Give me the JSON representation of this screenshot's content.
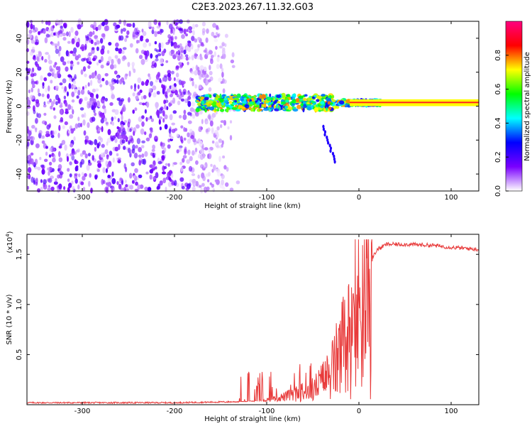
{
  "page_title": "C2E3.2023.267.11.32.G03",
  "chart_data": [
    {
      "type": "heatmap",
      "title": "C2E3.2023.267.11.32.G03",
      "xlabel": "Height of straight line (km)",
      "ylabel": "Frequency (Hz)",
      "xlim": [
        -360,
        130
      ],
      "ylim": [
        -50,
        50
      ],
      "xticks": [
        "-300",
        "-200",
        "-100",
        "0",
        "100"
      ],
      "yticks": [
        "-40",
        "-20",
        "0",
        "20",
        "40"
      ],
      "colorbar": {
        "label": "Normalized spectral amplitude",
        "range": [
          0,
          1
        ],
        "ticks": [
          "0.0",
          "0.2",
          "0.4",
          "0.6",
          "0.8"
        ],
        "colors": [
          "#ffffff",
          "#7a00ff",
          "#0000ff",
          "#00ffff",
          "#00ff00",
          "#ffff00",
          "#ff0000",
          "#ff0080"
        ]
      },
      "features": [
        {
          "name": "noise-scatter",
          "x_range": [
            -360,
            -130
          ],
          "freq_range": [
            -50,
            50
          ],
          "amplitude": 0.15
        },
        {
          "name": "signal-band",
          "x_range": [
            -175,
            130
          ],
          "center_freq": 2,
          "amplitude": 0.85
        },
        {
          "name": "constant-tone",
          "x_range": [
            -10,
            130
          ],
          "freq_range": [
            0,
            4
          ],
          "amplitude": 0.9
        }
      ]
    },
    {
      "type": "line",
      "xlabel": "Height of straight line (km)",
      "ylabel": "SNR (10 * v/v)",
      "multiplier": "(x10",
      "multiplier_exp": "4",
      "xlim": [
        -360,
        130
      ],
      "ylim": [
        0,
        1.7
      ],
      "xticks": [
        "-300",
        "-200",
        "-100",
        "0",
        "100"
      ],
      "yticks": [
        "0.5",
        "1.0",
        "1.5"
      ],
      "line_color": "#e83a3a",
      "series": [
        {
          "name": "SNR",
          "x": [
            -360,
            -300,
            -200,
            -130,
            -110,
            -90,
            -70,
            -50,
            -40,
            -30,
            -20,
            -10,
            0,
            10,
            20,
            30,
            50,
            80,
            100,
            130
          ],
          "y": [
            0.02,
            0.02,
            0.02,
            0.03,
            0.08,
            0.15,
            0.22,
            0.28,
            0.4,
            0.55,
            0.8,
            1.0,
            1.2,
            1.4,
            1.55,
            1.6,
            1.6,
            1.59,
            1.57,
            1.55
          ]
        }
      ]
    }
  ]
}
